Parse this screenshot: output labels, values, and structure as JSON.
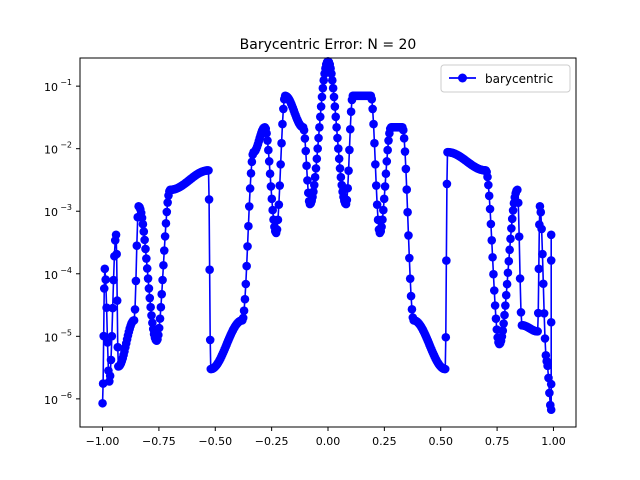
{
  "chart_data": {
    "type": "line",
    "title": "Barycentric Error: N = 20",
    "xlabel": "",
    "ylabel": "",
    "xlim": [
      -1.1,
      1.1
    ],
    "ylim_log10": [
      -6.45,
      -0.55
    ],
    "yscale": "log",
    "grid": false,
    "legend_position": "top-right",
    "x_ticks": [
      {
        "value": -1.0,
        "label": "−1.00"
      },
      {
        "value": -0.75,
        "label": "−0.75"
      },
      {
        "value": -0.5,
        "label": "−0.50"
      },
      {
        "value": -0.25,
        "label": "−0.25"
      },
      {
        "value": 0.0,
        "label": "0.00"
      },
      {
        "value": 0.25,
        "label": "0.25"
      },
      {
        "value": 0.5,
        "label": "0.50"
      },
      {
        "value": 0.75,
        "label": "0.75"
      },
      {
        "value": 1.0,
        "label": "1.00"
      }
    ],
    "y_ticks": [
      {
        "exp": -6,
        "label": "10",
        "sup": "−6"
      },
      {
        "exp": -5,
        "label": "10",
        "sup": "−5"
      },
      {
        "exp": -4,
        "label": "10",
        "sup": "−4"
      },
      {
        "exp": -3,
        "label": "10",
        "sup": "−3"
      },
      {
        "exp": -2,
        "label": "10",
        "sup": "−2"
      },
      {
        "exp": -1,
        "label": "10",
        "sup": "−1"
      }
    ],
    "series": [
      {
        "name": "barycentric",
        "color": "#0000ff",
        "marker": "circle",
        "nodes": [
          -1.0,
          -0.975,
          -0.9,
          -0.78,
          -0.62,
          -0.43,
          -0.22,
          0.0,
          0.22,
          0.43,
          0.62,
          0.78,
          0.9,
          0.975,
          1.0
        ],
        "peaks": [
          {
            "x": -0.99,
            "y": 0.00012
          },
          {
            "x": -0.94,
            "y": 0.00042
          },
          {
            "x": -0.84,
            "y": 0.0012
          },
          {
            "x": -0.7,
            "y": 0.0022
          },
          {
            "x": -0.53,
            "y": 0.0045
          },
          {
            "x": -0.33,
            "y": 0.0088
          },
          {
            "x": -0.11,
            "y": 0.022
          },
          {
            "x": 0.11,
            "y": 0.07
          },
          {
            "x": 0.33,
            "y": 0.022
          },
          {
            "x": 0.53,
            "y": 0.0088
          },
          {
            "x": 0.7,
            "y": 0.0045
          },
          {
            "x": 0.84,
            "y": 0.0022
          },
          {
            "x": 0.94,
            "y": 0.0012
          },
          {
            "x": 0.99,
            "y": 0.00042
          }
        ],
        "center_peak": {
          "x": 0.0,
          "y": 0.25
        },
        "side_peaks": [
          {
            "x": -0.19,
            "y": 0.07
          },
          {
            "x": 0.19,
            "y": 0.07
          },
          {
            "x": -0.28,
            "y": 0.022
          },
          {
            "x": 0.28,
            "y": 0.022
          }
        ],
        "dips": [
          {
            "x": -1.0,
            "y": 8.5e-07
          },
          {
            "x": -0.97,
            "y": 1.9e-06
          },
          {
            "x": -0.93,
            "y": 3.3e-06
          },
          {
            "x": -0.86,
            "y": 1.8e-05
          },
          {
            "x": -0.76,
            "y": 8.5e-06
          },
          {
            "x": -0.52,
            "y": 3e-06
          },
          {
            "x": -0.38,
            "y": 1.8e-05
          },
          {
            "x": -0.23,
            "y": 0.00045
          },
          {
            "x": -0.08,
            "y": 0.0013
          },
          {
            "x": 0.08,
            "y": 0.0013
          },
          {
            "x": 0.23,
            "y": 0.00045
          },
          {
            "x": 0.38,
            "y": 1.8e-05
          },
          {
            "x": 0.52,
            "y": 3e-06
          },
          {
            "x": 0.76,
            "y": 7.5e-06
          },
          {
            "x": 0.86,
            "y": 1.5e-05
          },
          {
            "x": 0.93,
            "y": 1.2e-05
          },
          {
            "x": 0.97,
            "y": 4e-06
          },
          {
            "x": 0.99,
            "y": 6.7e-07
          }
        ]
      }
    ]
  }
}
